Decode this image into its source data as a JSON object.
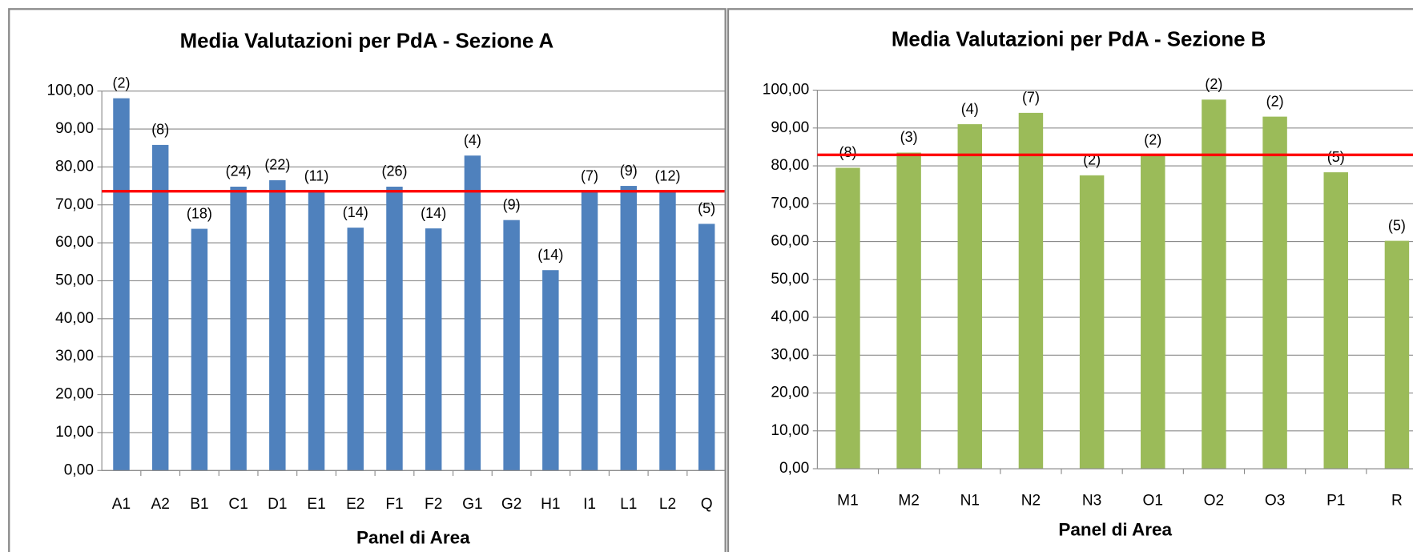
{
  "chart_data": [
    {
      "type": "bar",
      "title": "Media Valutazioni per PdA - Sezione A",
      "x_label": "Panel di Area",
      "categories": [
        "A1",
        "A2",
        "B1",
        "C1",
        "D1",
        "E1",
        "E2",
        "F1",
        "F2",
        "G1",
        "G2",
        "H1",
        "I1",
        "L1",
        "L2",
        "Q"
      ],
      "values": [
        98.1,
        85.8,
        63.7,
        74.8,
        76.5,
        73.6,
        64,
        74.8,
        63.8,
        83,
        66,
        52.8,
        73.6,
        75,
        73.6,
        65
      ],
      "bar_labels": [
        "(2)",
        "(8)",
        "(18)",
        "(24)",
        "(22)",
        "(11)",
        "(14)",
        "(26)",
        "(14)",
        "(4)",
        "(9)",
        "(14)",
        "(7)",
        "(9)",
        "(12)",
        "(5)"
      ],
      "color": "#4f81bd",
      "reference_line": {
        "value": 73.6,
        "color": "#ff0000"
      },
      "ylim": [
        0,
        100
      ],
      "yticks": [
        {
          "value": 0,
          "label": "0,00"
        },
        {
          "value": 10,
          "label": "10,00"
        },
        {
          "value": 20,
          "label": "20,00"
        },
        {
          "value": 30,
          "label": "30,00"
        },
        {
          "value": 40,
          "label": "40,00"
        },
        {
          "value": 50,
          "label": "50,00"
        },
        {
          "value": 60,
          "label": "60,00"
        },
        {
          "value": 70,
          "label": "70,00"
        },
        {
          "value": 80,
          "label": "80,00"
        },
        {
          "value": 90,
          "label": "90,00"
        },
        {
          "value": 100,
          "label": "100,00"
        }
      ],
      "grid": true
    },
    {
      "type": "bar",
      "title": "Media Valutazioni per PdA - Sezione B",
      "x_label": "Panel di Area",
      "categories": [
        "M1",
        "M2",
        "N1",
        "N2",
        "N3",
        "O1",
        "O2",
        "O3",
        "P1",
        "R"
      ],
      "values": [
        79.5,
        83.5,
        91,
        94,
        77.5,
        82.8,
        97.5,
        93,
        78.3,
        60.2
      ],
      "bar_labels": [
        "(8)",
        "(3)",
        "(4)",
        "(7)",
        "(2)",
        "(2)",
        "(2)",
        "(2)",
        "(5)",
        "(5)"
      ],
      "color": "#9bbb59",
      "reference_line": {
        "value": 82.9,
        "color": "#ff0000"
      },
      "ylim": [
        0,
        100
      ],
      "yticks": [
        {
          "value": 0,
          "label": "0,00"
        },
        {
          "value": 10,
          "label": "10,00"
        },
        {
          "value": 20,
          "label": "20,00"
        },
        {
          "value": 30,
          "label": "30,00"
        },
        {
          "value": 40,
          "label": "40,00"
        },
        {
          "value": 50,
          "label": "50,00"
        },
        {
          "value": 60,
          "label": "60,00"
        },
        {
          "value": 70,
          "label": "70,00"
        },
        {
          "value": 80,
          "label": "80,00"
        },
        {
          "value": 90,
          "label": "90,00"
        },
        {
          "value": 100,
          "label": "100,00"
        }
      ],
      "grid": true
    }
  ]
}
